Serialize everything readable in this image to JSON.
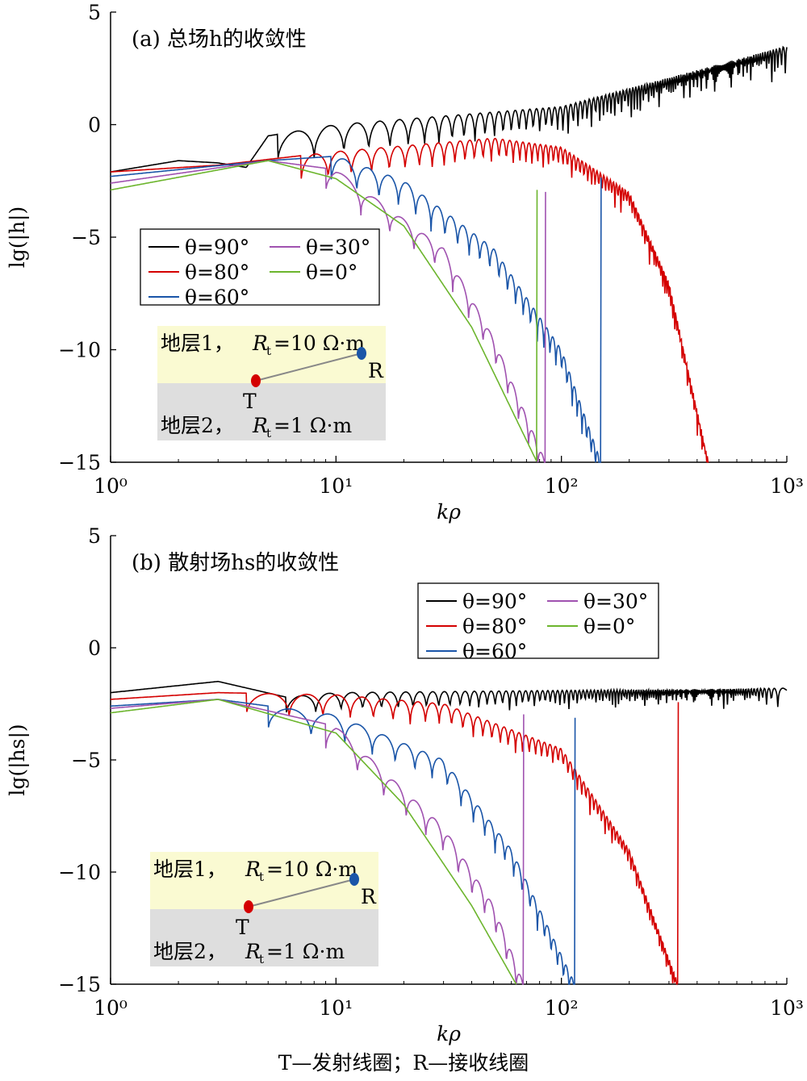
{
  "chart_data": [
    {
      "type": "line",
      "title": "(a) 总场h的收敛性",
      "xlabel": "kρ",
      "ylabel": "lg(|h|)",
      "x_scale": "log",
      "xlim": [
        1,
        1000
      ],
      "ylim": [
        -15,
        5
      ],
      "yticks": [
        "5",
        "0",
        "−5",
        "−10",
        "−15"
      ],
      "xticks": [
        "10⁰",
        "10¹",
        "10²",
        "10³"
      ],
      "legend": {
        "placement": "middle-left",
        "entries": [
          "θ=90°",
          "θ=30°",
          "θ=80°",
          "θ=0°",
          "θ=60°"
        ]
      },
      "series": [
        {
          "name": "θ=90°",
          "color": "#000000",
          "values": [
            [
              1,
              -2.1
            ],
            [
              2,
              -1.6
            ],
            [
              3,
              -1.7
            ],
            [
              4,
              -1.9
            ],
            [
              5,
              -0.5
            ],
            [
              10,
              0
            ],
            [
              100,
              0.8
            ],
            [
              1000,
              3.5
            ]
          ]
        },
        {
          "name": "θ=80°",
          "color": "#d40000",
          "values": [
            [
              1,
              -2.1
            ],
            [
              3,
              -1.8
            ],
            [
              10,
              -1.2
            ],
            [
              50,
              -0.6
            ],
            [
              100,
              -1.0
            ],
            [
              200,
              -3.0
            ],
            [
              300,
              -7.0
            ],
            [
              450,
              -15
            ]
          ]
        },
        {
          "name": "θ=60°",
          "color": "#1a55a8",
          "values": [
            [
              1,
              -2.3
            ],
            [
              5,
              -1.6
            ],
            [
              10,
              -1.4
            ],
            [
              20,
              -2.5
            ],
            [
              50,
              -5.5
            ],
            [
              100,
              -10.0
            ],
            [
              150,
              -15
            ]
          ]
        },
        {
          "name": "θ=30°",
          "color": "#a052b0",
          "values": [
            [
              1,
              -2.6
            ],
            [
              5,
              -1.6
            ],
            [
              10,
              -2.0
            ],
            [
              30,
              -5.5
            ],
            [
              50,
              -9.5
            ],
            [
              85,
              -15
            ]
          ]
        },
        {
          "name": "θ=0°",
          "color": "#6cb52d",
          "values": [
            [
              1,
              -2.9
            ],
            [
              5,
              -1.6
            ],
            [
              10,
              -2.4
            ],
            [
              20,
              -4.5
            ],
            [
              40,
              -9.0
            ],
            [
              78,
              -15
            ]
          ]
        }
      ],
      "inset": {
        "layer1_prefix": "地层1，",
        "layer1_rt": "10 Ω·m",
        "layer2_prefix": "地层2，",
        "layer2_rt": "1 Ω·m",
        "transmitter": "T",
        "receiver": "R",
        "layer1_color": "#fafad2",
        "layer2_color": "#dedede"
      }
    },
    {
      "type": "line",
      "title": "(b) 散射场hs的收敛性",
      "xlabel": "kρ",
      "ylabel": "lg(|hs|)",
      "x_scale": "log",
      "xlim": [
        1,
        1000
      ],
      "ylim": [
        -15,
        5
      ],
      "yticks": [
        "5",
        "0",
        "−5",
        "−10",
        "−15"
      ],
      "xticks": [
        "10⁰",
        "10¹",
        "10²",
        "10³"
      ],
      "legend": {
        "placement": "top-right",
        "entries": [
          "θ=90°",
          "θ=30°",
          "θ=80°",
          "θ=0°",
          "θ=60°"
        ]
      },
      "series": [
        {
          "name": "θ=90°",
          "color": "#000000",
          "values": [
            [
              1,
              -2.0
            ],
            [
              3,
              -1.5
            ],
            [
              6,
              -2.2
            ],
            [
              10,
              -2.0
            ],
            [
              100,
              -1.9
            ],
            [
              1000,
              -1.8
            ]
          ]
        },
        {
          "name": "θ=80°",
          "color": "#d40000",
          "values": [
            [
              1,
              -2.3
            ],
            [
              3,
              -2.0
            ],
            [
              10,
              -2.1
            ],
            [
              30,
              -2.5
            ],
            [
              100,
              -4.5
            ],
            [
              200,
              -9.0
            ],
            [
              330,
              -15
            ]
          ]
        },
        {
          "name": "θ=60°",
          "color": "#1a55a8",
          "values": [
            [
              1,
              -2.6
            ],
            [
              3,
              -2.3
            ],
            [
              10,
              -3.0
            ],
            [
              30,
              -5.0
            ],
            [
              60,
              -9.0
            ],
            [
              115,
              -15
            ]
          ]
        },
        {
          "name": "θ=30°",
          "color": "#a052b0",
          "values": [
            [
              1,
              -2.7
            ],
            [
              3,
              -2.3
            ],
            [
              10,
              -3.5
            ],
            [
              30,
              -8.0
            ],
            [
              50,
              -11.5
            ],
            [
              68,
              -15
            ]
          ]
        },
        {
          "name": "θ=0°",
          "color": "#6cb52d",
          "values": [
            [
              1,
              -2.9
            ],
            [
              3,
              -2.3
            ],
            [
              10,
              -3.8
            ],
            [
              20,
              -7.0
            ],
            [
              40,
              -11.5
            ],
            [
              63,
              -15
            ]
          ]
        }
      ],
      "inset": {
        "layer1_prefix": "地层1，",
        "layer1_rt": "10 Ω·m",
        "layer2_prefix": "地层2，",
        "layer2_rt": "1 Ω·m",
        "transmitter": "T",
        "receiver": "R",
        "layer1_color": "#fafad2",
        "layer2_color": "#dedede"
      }
    }
  ],
  "caption": "T—发射线圈；R—接收线圈"
}
